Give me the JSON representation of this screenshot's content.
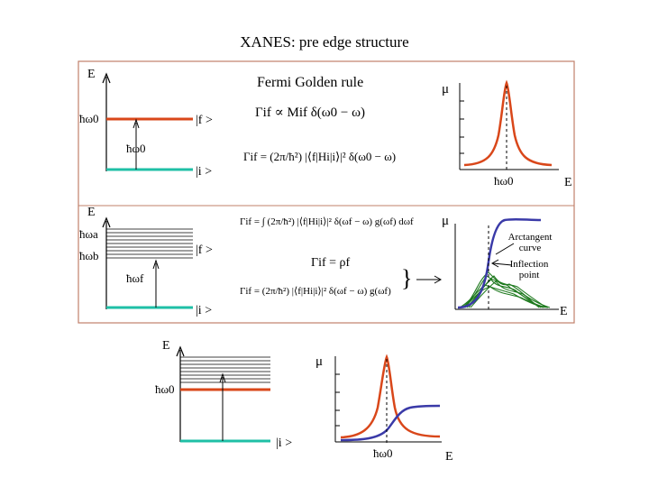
{
  "title": "XANES: pre edge structure",
  "colors": {
    "red": "#d9471a",
    "teal": "#1fbfa6",
    "blue": "#3a3aa8",
    "green": "#1f7a1f",
    "frame": "#c0806a"
  },
  "panel1": {
    "e_label": "E",
    "heading": "Fermi Golden rule",
    "omega0_label": "ħω0",
    "omega0_label_b": "ħω0",
    "ket_f": "|f >",
    "ket_i": "|i >",
    "mu_label": "μ",
    "x_label": "ħω0",
    "axis_e": "E",
    "formula_top": "Γif ∝ Mif δ(ω0 − ω)",
    "formula_bottom": "Γif = (2π/ħ²) |⟨f|Hi|i⟩|² δ(ω0 − ω)"
  },
  "panel2": {
    "e_label": "E",
    "omega_a": "ħωa",
    "omega_b": "ħωb",
    "omega_f": "ħωf",
    "ket_f": "|f >",
    "ket_i": "|i >",
    "mu_label": "μ",
    "axis_e": "E",
    "annotation_arctan": "Arctangent curve",
    "annotation_inflection": "Inflection point",
    "formula_top": "Γif = ∫ (2π/ħ²) |⟨f|Hi|i⟩|² δ(ωf − ω) g(ωf) dωf",
    "formula_mid": "Γif = ρf",
    "formula_bottom": "Γif = (2π/ħ²) |⟨f|Hi|i⟩|² δ(ωf − ω) g(ωf)",
    "brace": "}"
  },
  "panel3": {
    "e_label": "E",
    "omega0_label": "ħω0",
    "ket_i": "|i >",
    "mu_label": "μ",
    "x_label": "ħω0",
    "axis_e": "E"
  }
}
